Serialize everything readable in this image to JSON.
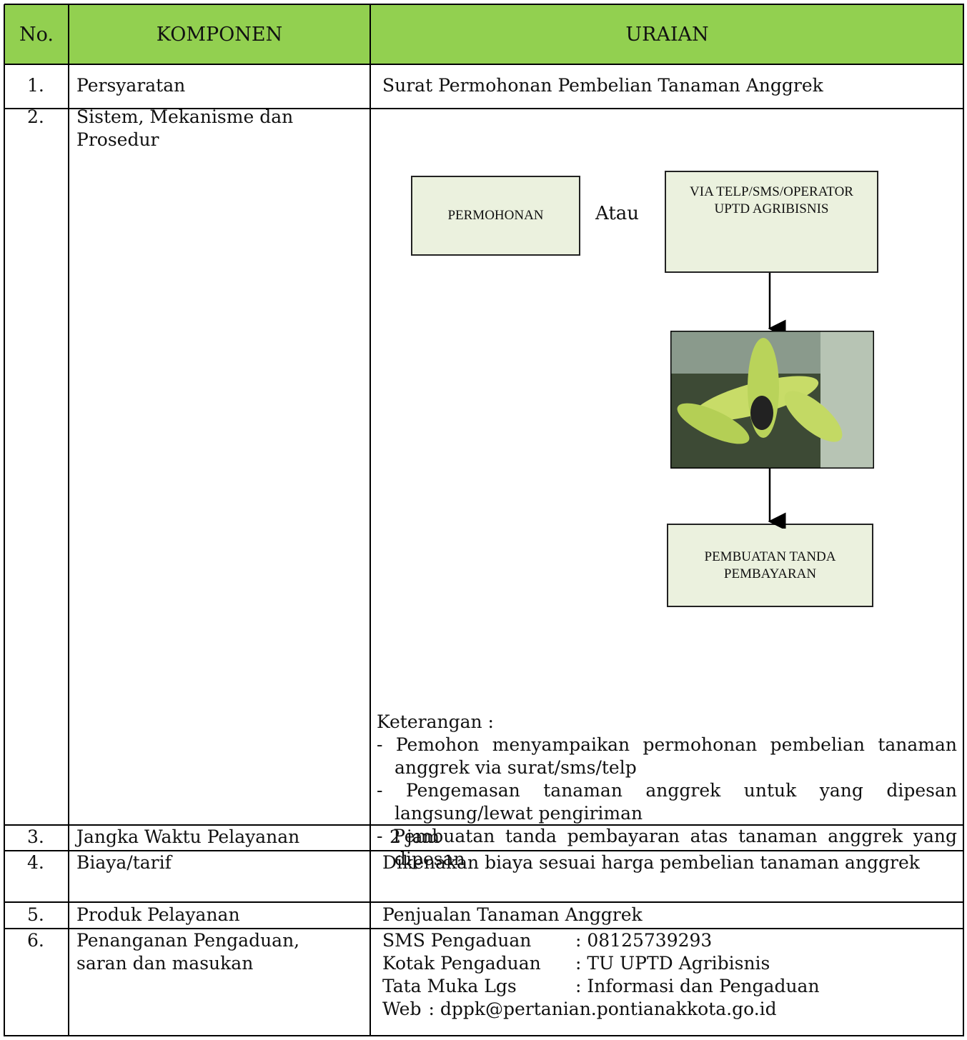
{
  "table": {
    "header": [
      "No.",
      "KOMPONEN",
      "URAIAN"
    ],
    "rows": [
      [
        "1.",
        "Persyaratan",
        "Surat Permohonan Pembelian Tanaman Anggrek"
      ],
      [
        "2.",
        "Sistem, Mekanisme dan Prosedur"
      ],
      [
        "3.",
        "Jangka Waktu Pelayanan",
        "2 jam"
      ],
      [
        "4.",
        "Biaya/tarif",
        "Dikenakan biaya sesuai harga pembelian tanaman anggrek"
      ],
      [
        "5.",
        "Produk Pelayanan",
        "Penjualan Tanaman Anggrek"
      ],
      [
        "6.",
        "Penanganan Pengaduan, saran dan masukan"
      ]
    ]
  },
  "diagram": {
    "nodes": [
      {
        "label": "PERMOHONAN"
      },
      {
        "label": "VIA TELP/SMS/OPERATOR UPTD AGRIBISNIS"
      },
      {
        "label": "PEMBUATAN TANDA PEMBAYARAN"
      }
    ],
    "connector": "Atau"
  },
  "notes": {
    "title": "Keterangan :",
    "items": [
      "Pemohon menyampaikan permohonan pembelian tanaman anggrek via surat/sms/telp",
      "Pengemasan tanaman anggrek untuk yang dipesan langsung/lewat pengiriman",
      "Pembuatan tanda pembayaran atas tanaman anggrek yang dipesan"
    ]
  },
  "contacts": [
    {
      "label": "SMS Pengaduan",
      "value": ": 08125739293"
    },
    {
      "label": "Kotak Pengaduan",
      "value": ": TU UPTD Agribisnis"
    },
    {
      "label": "Tata Muka Lgs",
      "value": ": Informasi dan Pengaduan"
    },
    {
      "label": "Web",
      "value": ": dppk@pertanian.pontianakkota.go.id"
    }
  ]
}
